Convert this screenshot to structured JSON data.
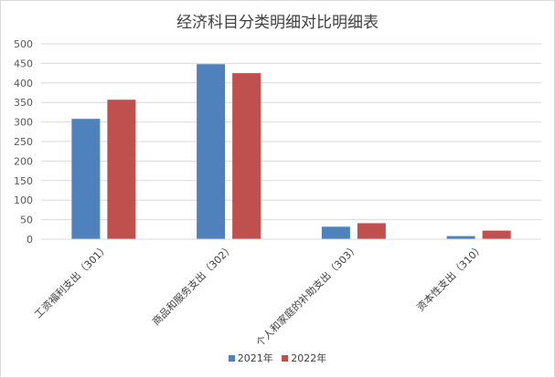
{
  "chart_data": {
    "type": "bar",
    "title": "经济科目分类明细对比明细表",
    "categories": [
      "工资福利支出（301）",
      "商品和服务支出（302）",
      "个人和家庭的补助支出（303）",
      "资本性支出（310）"
    ],
    "series": [
      {
        "name": "2021年",
        "values": [
          308,
          448,
          32,
          8
        ],
        "color": "#4F81BD"
      },
      {
        "name": "2022年",
        "values": [
          357,
          425,
          41,
          22
        ],
        "color": "#C0504D"
      }
    ],
    "y_ticks": [
      "0",
      "50",
      "100",
      "150",
      "200",
      "250",
      "300",
      "350",
      "400",
      "450",
      "500"
    ],
    "ylim": [
      0,
      500
    ],
    "grid": true,
    "legend_position": "bottom"
  }
}
